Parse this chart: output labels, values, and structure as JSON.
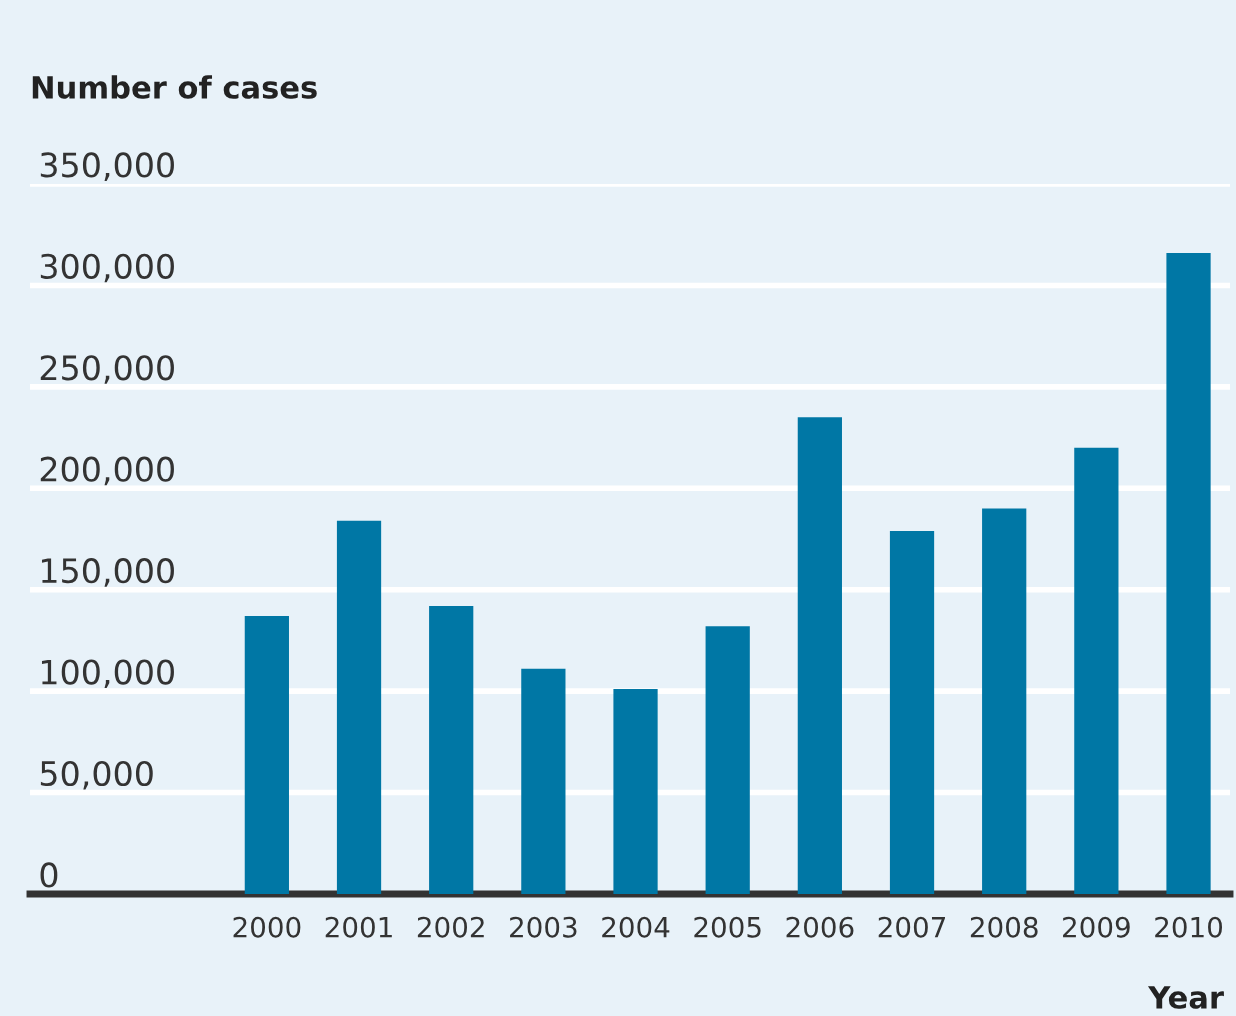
{
  "chart_data": {
    "type": "bar",
    "ylabel": "Number of cases",
    "xlabel": "Year",
    "categories": [
      "2000",
      "2001",
      "2002",
      "2003",
      "2004",
      "2005",
      "2006",
      "2007",
      "2008",
      "2009",
      "2010"
    ],
    "values": [
      137000,
      184000,
      142000,
      111000,
      101000,
      132000,
      235000,
      179000,
      190000,
      220000,
      316000
    ],
    "color": "#0077a5",
    "ylim": [
      0,
      350000
    ],
    "yticks": [
      {
        "value": 0,
        "label": "0"
      },
      {
        "value": 50000,
        "label": "50,000"
      },
      {
        "value": 100000,
        "label": "100,000"
      },
      {
        "value": 150000,
        "label": "150,000"
      },
      {
        "value": 200000,
        "label": "200,000"
      },
      {
        "value": 250000,
        "label": "250,000"
      },
      {
        "value": 300000,
        "label": "300,000"
      },
      {
        "value": 350000,
        "label": "350,000"
      }
    ],
    "grid": "y"
  }
}
